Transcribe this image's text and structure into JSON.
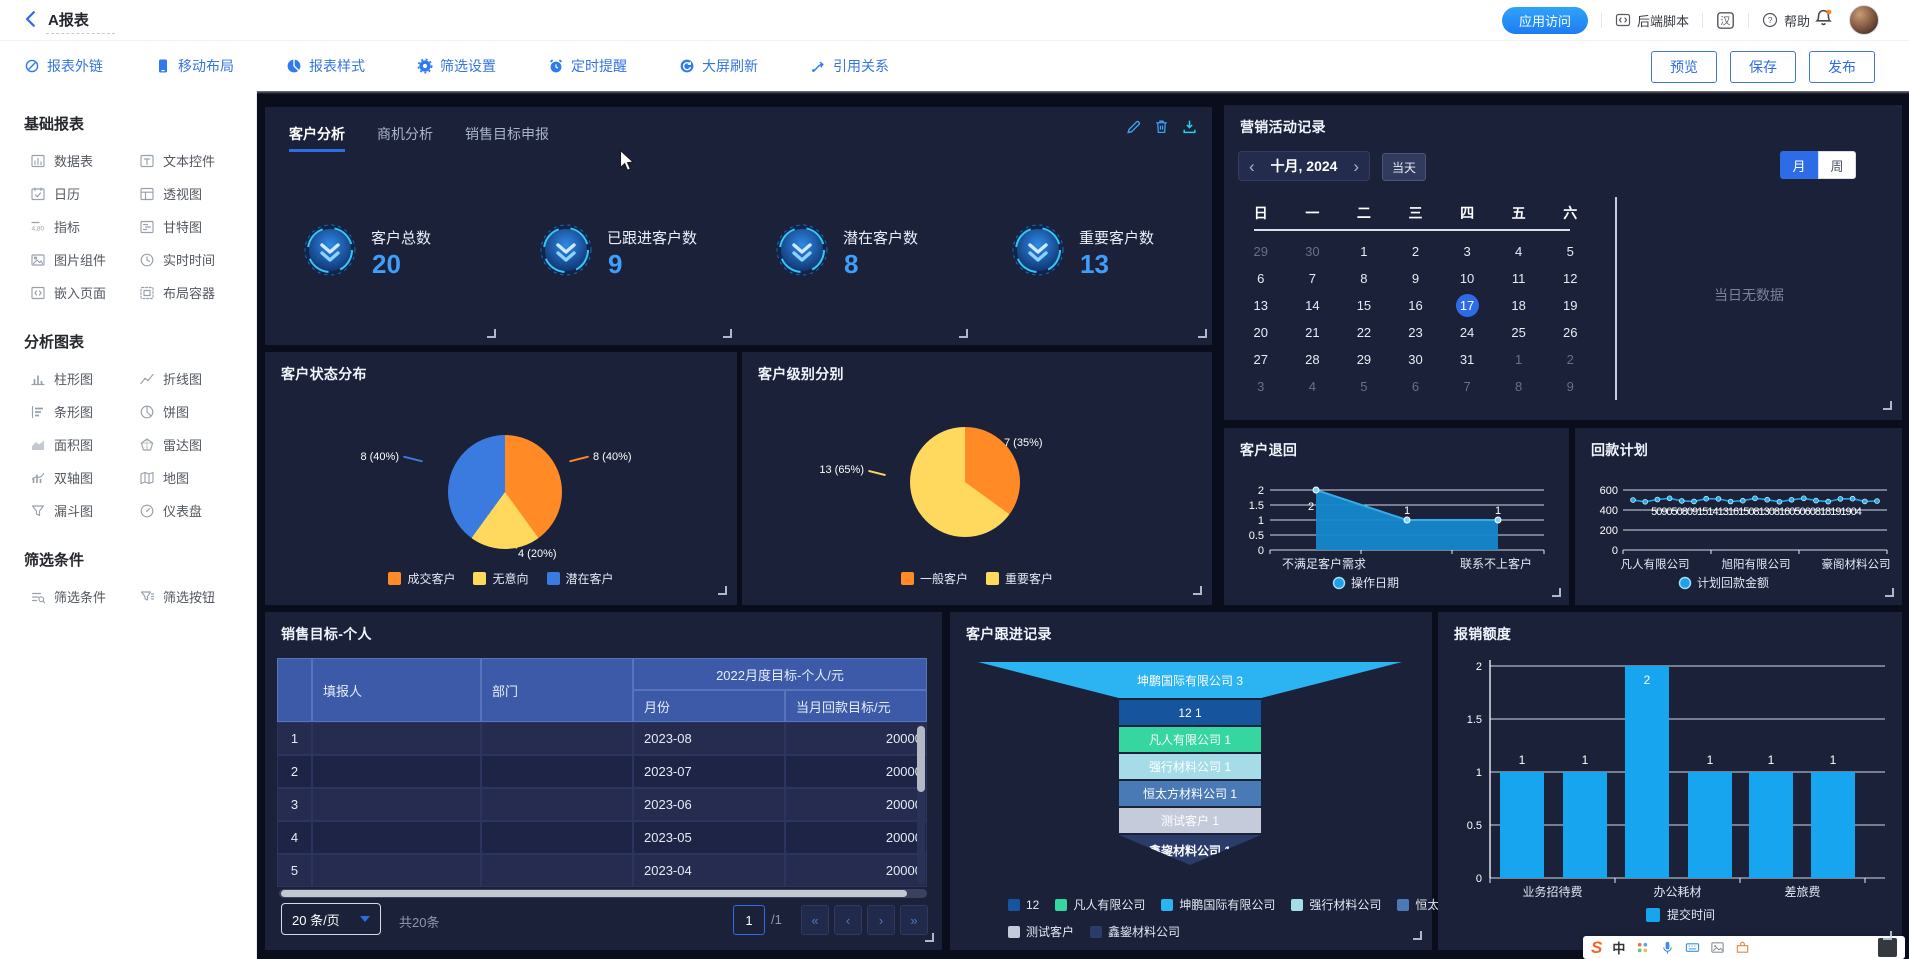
{
  "header": {
    "title": "A报表",
    "app_access": "应用访问",
    "backend_script": "后端脚本",
    "help": "帮助"
  },
  "toolbar": {
    "items": [
      {
        "label": "报表外链",
        "icon": "link-icon"
      },
      {
        "label": "移动布局",
        "icon": "phone-icon"
      },
      {
        "label": "报表样式",
        "icon": "piechart-icon"
      },
      {
        "label": "筛选设置",
        "icon": "gear-icon"
      },
      {
        "label": "定时提醒",
        "icon": "alarm-icon"
      },
      {
        "label": "大屏刷新",
        "icon": "refresh-icon"
      },
      {
        "label": "引用关系",
        "icon": "relation-icon"
      }
    ],
    "preview": "预览",
    "save": "保存",
    "publish": "发布"
  },
  "sidebar": {
    "sections": [
      {
        "title": "基础报表",
        "items": [
          {
            "label": "数据表",
            "icon": "table-icon"
          },
          {
            "label": "文本控件",
            "icon": "text-icon"
          },
          {
            "label": "日历",
            "icon": "calendar-icon"
          },
          {
            "label": "透视图",
            "icon": "pivot-icon"
          },
          {
            "label": "指标",
            "icon": "metric-icon"
          },
          {
            "label": "甘特图",
            "icon": "gantt-icon"
          },
          {
            "label": "图片组件",
            "icon": "image-icon"
          },
          {
            "label": "实时时间",
            "icon": "clock-icon"
          },
          {
            "label": "嵌入页面",
            "icon": "embed-icon"
          },
          {
            "label": "布局容器",
            "icon": "container-icon"
          }
        ]
      },
      {
        "title": "分析图表",
        "items": [
          {
            "label": "柱形图",
            "icon": "bar-icon"
          },
          {
            "label": "折线图",
            "icon": "line-icon"
          },
          {
            "label": "条形图",
            "icon": "hbar-icon"
          },
          {
            "label": "饼图",
            "icon": "pie-icon"
          },
          {
            "label": "面积图",
            "icon": "area-icon"
          },
          {
            "label": "雷达图",
            "icon": "radar-icon"
          },
          {
            "label": "双轴图",
            "icon": "dual-icon"
          },
          {
            "label": "地图",
            "icon": "map-icon"
          },
          {
            "label": "漏斗图",
            "icon": "funnel-icon"
          },
          {
            "label": "仪表盘",
            "icon": "gauge-icon"
          }
        ]
      },
      {
        "title": "筛选条件",
        "items": [
          {
            "label": "筛选条件",
            "icon": "filter-icon"
          },
          {
            "label": "筛选按钮",
            "icon": "filterbtn-icon"
          }
        ]
      }
    ]
  },
  "dashboard": {
    "tabs": [
      {
        "label": "客户分析",
        "active": true
      },
      {
        "label": "商机分析",
        "active": false
      },
      {
        "label": "销售目标申报",
        "active": false
      }
    ],
    "kpis": [
      {
        "label": "客户总数",
        "value": "20"
      },
      {
        "label": "已跟进客户数",
        "value": "9"
      },
      {
        "label": "潜在客户数",
        "value": "8"
      },
      {
        "label": "重要客户数",
        "value": "13"
      }
    ],
    "pie_status": {
      "title": "客户状态分布",
      "type": "pie",
      "slices": [
        {
          "name": "成交客户",
          "value": 8,
          "label": "8 (40%)",
          "color": "#FF8A26"
        },
        {
          "name": "无意向",
          "value": 4,
          "label": "4 (20%)",
          "color": "#FFD95E"
        },
        {
          "name": "潜在客户",
          "value": 8,
          "label": "8 (40%)",
          "color": "#3B7BE0"
        }
      ]
    },
    "pie_level": {
      "title": "客户级别分别",
      "type": "pie",
      "slices": [
        {
          "name": "一般客户",
          "value": 7,
          "label": "7 (35%)",
          "color": "#FF8A26"
        },
        {
          "name": "重要客户",
          "value": 13,
          "label": "13 (65%)",
          "color": "#FFD95E"
        }
      ]
    },
    "calendar": {
      "title": "营销活动记录",
      "month_label": "十月, 2024",
      "today_btn": "当天",
      "view_month": "月",
      "view_week": "周",
      "weekdays": [
        "日",
        "一",
        "二",
        "三",
        "四",
        "五",
        "六"
      ],
      "rows": [
        [
          {
            "d": "29",
            "muted": true
          },
          {
            "d": "30",
            "muted": true
          },
          {
            "d": "1"
          },
          {
            "d": "2"
          },
          {
            "d": "3"
          },
          {
            "d": "4"
          },
          {
            "d": "5"
          }
        ],
        [
          {
            "d": "6"
          },
          {
            "d": "7"
          },
          {
            "d": "8"
          },
          {
            "d": "9"
          },
          {
            "d": "10"
          },
          {
            "d": "11"
          },
          {
            "d": "12"
          }
        ],
        [
          {
            "d": "13"
          },
          {
            "d": "14"
          },
          {
            "d": "15"
          },
          {
            "d": "16"
          },
          {
            "d": "17",
            "selected": true
          },
          {
            "d": "18"
          },
          {
            "d": "19"
          }
        ],
        [
          {
            "d": "20"
          },
          {
            "d": "21"
          },
          {
            "d": "22"
          },
          {
            "d": "23"
          },
          {
            "d": "24"
          },
          {
            "d": "25"
          },
          {
            "d": "26"
          }
        ],
        [
          {
            "d": "27"
          },
          {
            "d": "28"
          },
          {
            "d": "29"
          },
          {
            "d": "30"
          },
          {
            "d": "31"
          },
          {
            "d": "1",
            "muted": true
          },
          {
            "d": "2",
            "muted": true
          }
        ],
        [
          {
            "d": "3",
            "muted": true
          },
          {
            "d": "4",
            "muted": true
          },
          {
            "d": "5",
            "muted": true
          },
          {
            "d": "6",
            "muted": true
          },
          {
            "d": "7",
            "muted": true
          },
          {
            "d": "8",
            "muted": true
          },
          {
            "d": "9",
            "muted": true
          }
        ]
      ],
      "empty_text": "当日无数据"
    },
    "refund": {
      "title": "客户退回",
      "type": "area",
      "y_ticks": [
        "2",
        "1.5",
        "1",
        "0.5",
        "0"
      ],
      "x_labels": [
        "不满足客户需求",
        "联系不上客户"
      ],
      "values": [
        2,
        1,
        1
      ],
      "point_labels": [
        "2",
        "1",
        "1"
      ],
      "legend": "操作日期",
      "color": "#1488CC"
    },
    "payback": {
      "title": "回款计划",
      "type": "line",
      "y_ticks": [
        "600",
        "400",
        "200",
        "0"
      ],
      "x_labels": [
        "凡人有限公司",
        "旭阳有限公司",
        "豪阁材料公司"
      ],
      "approx_value": 505,
      "point_count": 21,
      "overlap_labels": "50905080915141316150813081605060818191904",
      "legend": "计划回款金额",
      "color": "#25A6E8"
    },
    "sales_table": {
      "title": "销售目标-个人",
      "col_reporter": "填报人",
      "col_dept": "部门",
      "col_group": "2022月度目标-个人/元",
      "col_month": "月份",
      "col_target": "当月回款目标/元",
      "rows": [
        {
          "idx": "1",
          "reporter": "",
          "dept": "",
          "month": "2023-08",
          "target": "20000"
        },
        {
          "idx": "2",
          "reporter": "",
          "dept": "",
          "month": "2023-07",
          "target": "20000"
        },
        {
          "idx": "3",
          "reporter": "",
          "dept": "",
          "month": "2023-06",
          "target": "20000"
        },
        {
          "idx": "4",
          "reporter": "",
          "dept": "",
          "month": "2023-05",
          "target": "20000"
        },
        {
          "idx": "5",
          "reporter": "",
          "dept": "",
          "month": "2023-04",
          "target": "20000"
        }
      ],
      "page_size": "20 条/页",
      "total": "共20条",
      "page": "1",
      "pages": "/1",
      "nav": [
        "«",
        "‹",
        "›",
        "»"
      ]
    },
    "funnel": {
      "title": "客户跟进记录",
      "type": "funnel",
      "stages": [
        {
          "label": "坤鹏国际有限公司 3",
          "color": "#2BB3F2"
        },
        {
          "label": "12 1",
          "color": "#17549E"
        },
        {
          "label": "凡人有限公司 1",
          "color": "#35D6A0"
        },
        {
          "label": "强行材料公司 1",
          "color": "#A6DBE8"
        },
        {
          "label": "恒太方材料公司 1",
          "color": "#4A7AB5"
        },
        {
          "label": "测试客户 1",
          "color": "#C6CBDC"
        },
        {
          "label": "鑫鋆材料公司 1",
          "color": "#2B3C6B"
        }
      ],
      "legend": [
        {
          "label": "12",
          "color": "#17549E"
        },
        {
          "label": "凡人有限公司",
          "color": "#35D6A0"
        },
        {
          "label": "坤鹏国际有限公司",
          "color": "#2BB3F2"
        },
        {
          "label": "强行材料公司",
          "color": "#A6DBE8"
        },
        {
          "label": "恒太方材料公司",
          "color": "#4A7AB5"
        },
        {
          "label": "测试客户",
          "color": "#C6CBDC"
        },
        {
          "label": "鑫鋆材料公司",
          "color": "#2B3C6B"
        }
      ]
    },
    "expense": {
      "title": "报销额度",
      "type": "bar",
      "y_ticks": [
        "2",
        "1.5",
        "1",
        "0.5",
        "0"
      ],
      "values": [
        1,
        1,
        2,
        1,
        1,
        1
      ],
      "x_labels": [
        "业务招待费",
        "办公耗材",
        "差旅费"
      ],
      "legend": "提交时间",
      "color": "#18A5EF"
    }
  },
  "ime": {
    "logo": "S",
    "lang": "中"
  }
}
